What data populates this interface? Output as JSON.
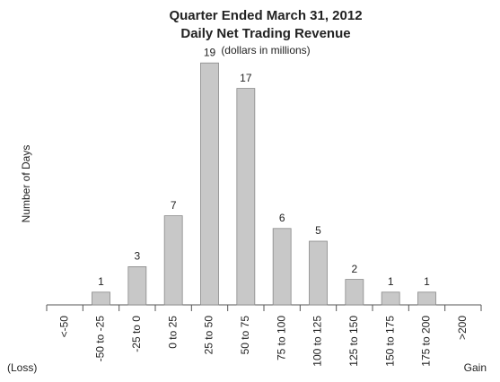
{
  "chart_data": {
    "type": "bar",
    "title": [
      "Quarter Ended March 31, 2012",
      "Daily Net Trading Revenue"
    ],
    "subtitle": "(dollars in millions)",
    "y_label": "Number of Days",
    "x_left_note": "(Loss)",
    "x_right_note": "Gain",
    "categories": [
      "<-50",
      "-50 to -25",
      "-25 to 0",
      "0 to 25",
      "25 to 50",
      "50 to 75",
      "75 to 100",
      "100 to 125",
      "125 to 150",
      "150 to 175",
      "175 to 200",
      ">200"
    ],
    "values": [
      0,
      1,
      3,
      7,
      19,
      17,
      6,
      5,
      2,
      1,
      1,
      0
    ],
    "color": "#c8c8c8",
    "ylim": [
      0,
      20
    ]
  }
}
